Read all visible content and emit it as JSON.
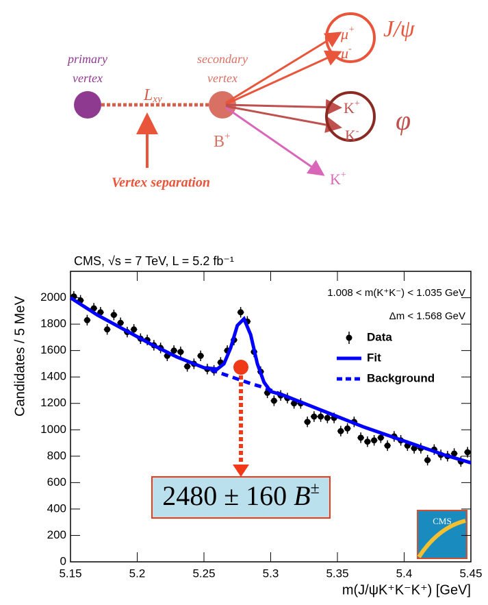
{
  "diagram": {
    "primary": "primary",
    "primary2": "vertex",
    "secondary": "secondary",
    "secondary2": "vertex",
    "separation_symbol": "L",
    "separation_sub": "xy",
    "parent": {
      "symbol": "B",
      "charge": "+"
    },
    "separation_label": "Vertex separation",
    "muon_plus": {
      "symbol": "μ",
      "charge": "+"
    },
    "muon_minus": {
      "symbol": "μ",
      "charge": "-"
    },
    "kaon_plus": {
      "symbol": "K",
      "charge": "+"
    },
    "kaon_minus": {
      "symbol": "K",
      "charge": "-"
    },
    "kaon_bachelor": {
      "symbol": "K",
      "charge": "+"
    },
    "jpsi": "J/ψ",
    "phi": "φ"
  },
  "chart_data": {
    "type": "scatter",
    "title": "CMS, √s = 7 TeV, L = 5.2 fb⁻¹",
    "annotations": [
      "1.008 < m(K⁺K⁻) < 1.035 GeV",
      "Δm < 1.568 GeV"
    ],
    "x_label": "m(J/ψK⁺K⁻K⁺) [GeV]",
    "y_label": "Candidates / 5 MeV",
    "yield_box": {
      "yield": "2480 ± 160",
      "particle": "B",
      "charge": "±"
    },
    "logo": "CMS",
    "xlim": [
      5.15,
      5.45
    ],
    "ylim": [
      0,
      2200
    ],
    "xticks": [
      5.15,
      5.2,
      5.25,
      5.3,
      5.35,
      5.4,
      5.45
    ],
    "yticks": [
      0,
      200,
      400,
      600,
      800,
      1000,
      1200,
      1400,
      1600,
      1800,
      2000
    ],
    "series": [
      {
        "name": "Data",
        "color": "#000000",
        "error": 40,
        "bin_width": 0.005,
        "x": [
          5.1525,
          5.1575,
          5.1625,
          5.1675,
          5.1725,
          5.1775,
          5.1825,
          5.1875,
          5.1925,
          5.1975,
          5.2025,
          5.2075,
          5.2125,
          5.2175,
          5.2225,
          5.2275,
          5.2325,
          5.2375,
          5.2425,
          5.2475,
          5.2525,
          5.2575,
          5.2625,
          5.2675,
          5.2725,
          5.2775,
          5.2825,
          5.2875,
          5.2925,
          5.2975,
          5.3025,
          5.3075,
          5.3125,
          5.3175,
          5.3225,
          5.3275,
          5.3325,
          5.3375,
          5.3425,
          5.3475,
          5.3525,
          5.3575,
          5.3625,
          5.3675,
          5.3725,
          5.3775,
          5.3825,
          5.3875,
          5.3925,
          5.3975,
          5.4025,
          5.4075,
          5.4125,
          5.4175,
          5.4225,
          5.4275,
          5.4325,
          5.4375,
          5.4425,
          5.4475
        ],
        "values": [
          2010,
          1980,
          1830,
          1920,
          1890,
          1760,
          1870,
          1810,
          1740,
          1760,
          1690,
          1680,
          1640,
          1620,
          1560,
          1600,
          1590,
          1480,
          1500,
          1560,
          1460,
          1450,
          1510,
          1600,
          1680,
          1890,
          1820,
          1590,
          1440,
          1280,
          1220,
          1260,
          1240,
          1200,
          1200,
          1060,
          1100,
          1100,
          1090,
          1090,
          990,
          1010,
          1060,
          940,
          910,
          920,
          940,
          880,
          950,
          920,
          880,
          860,
          860,
          770,
          850,
          810,
          800,
          820,
          760,
          830
        ]
      },
      {
        "name": "Fit",
        "color": "#0000ff",
        "style": "solid",
        "x": [
          5.15,
          5.17,
          5.19,
          5.21,
          5.23,
          5.25,
          5.26,
          5.265,
          5.27,
          5.275,
          5.28,
          5.285,
          5.29,
          5.295,
          5.3,
          5.31,
          5.33,
          5.35,
          5.37,
          5.39,
          5.41,
          5.43,
          5.45
        ],
        "values": [
          2000,
          1870,
          1760,
          1650,
          1550,
          1470,
          1460,
          1500,
          1620,
          1790,
          1840,
          1720,
          1500,
          1360,
          1290,
          1260,
          1180,
          1100,
          1020,
          950,
          880,
          810,
          750
        ]
      },
      {
        "name": "Background",
        "color": "#0000ff",
        "style": "dashed",
        "x": [
          5.255,
          5.265,
          5.275,
          5.285,
          5.295,
          5.305,
          5.31
        ],
        "values": [
          1455,
          1420,
          1385,
          1350,
          1320,
          1280,
          1260
        ]
      }
    ]
  }
}
